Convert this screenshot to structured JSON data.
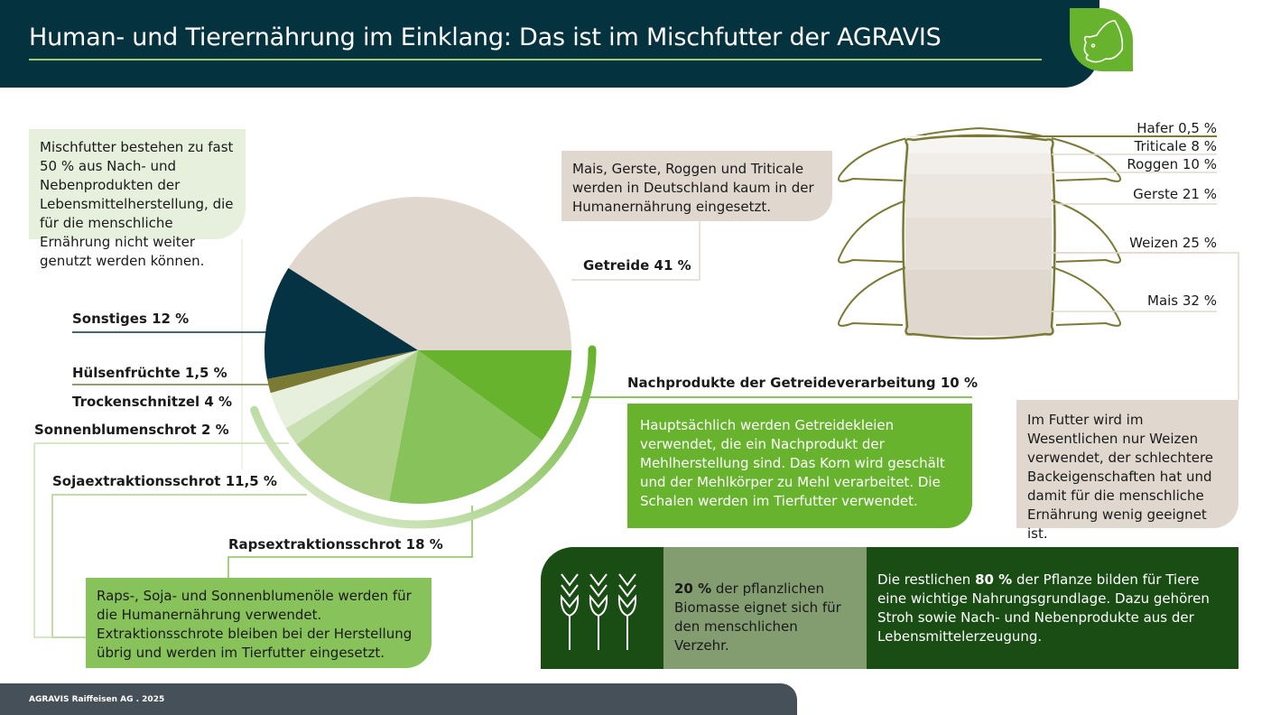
{
  "header": {
    "title": "Human- und Tierernährung im Einklang: Das ist im Mischfutter der AGRAVIS",
    "logo_icon": "pig-head-icon"
  },
  "intro_box": {
    "text": "Mischfutter bestehen zu fast 50 % aus Nach- und Nebenprodukten der Lebensmittelherstellung, die für die menschliche Ernährung nicht weiter genutzt werden können."
  },
  "cereal_box": {
    "text": "Mais, Gerste, Roggen und Triticale werden in Deutschland kaum in der Humanernährung eingesetzt."
  },
  "bran_box": {
    "text": "Hauptsächlich werden Getreidekleien verwendet, die ein Nachprodukt der Mehlherstellung sind. Das Korn wird geschält und der Mehlkörper zu Mehl verarbeitet. Die Schalen werden im Tierfutter verwendet."
  },
  "wheat_box": {
    "text": "Im Futter wird im Wesentlichen nur Weizen verwendet, der schlechtere Backeigenschaften hat und damit für die menschliche Ernährung wenig geeignet ist."
  },
  "oil_box": {
    "text": "Raps-, Soja- und Sonnenblumenöle werden für die Humanernährung verwendet. Extraktionsschrote bleiben bei der Herstellung übrig und werden im Tierfutter eingesetzt."
  },
  "biomass": {
    "icon": "wheat-ears-icon",
    "bold20": "20 %",
    "text20": " der pflanzlichen Biomasse eignet sich für den menschlichen Verzehr.",
    "pre80": "Die restlichen ",
    "bold80": "80 %",
    "text80": " der Pflanze bilden für Tiere eine wichtige Nahrungsgrundlage. Dazu gehören Stroh sowie Nach- und Nebenprodukte aus der Lebensmittelerzeugung."
  },
  "footer": {
    "text": "AGRAVIS Raiffeisen AG  .  2025"
  },
  "chart_data": [
    {
      "type": "pie",
      "start": "3 o'clock, counterclockwise",
      "labels": [
        "Getreide 41 %",
        "Sonstiges 12 %",
        "Hülsenfrüchte 1,5 %",
        "Trockenschnitzel 4 %",
        "Sonnenblumenschrot 2 %",
        "Sojaextraktionsschrot 11,5 %",
        "Rapsextraktionsschrot 18 %",
        "Nachprodukte der Getreideverarbeitung 10 %"
      ],
      "categories": [
        "Getreide",
        "Sonstiges",
        "Hülsenfrüchte",
        "Trockenschnitzel",
        "Sonnenblumenschrot",
        "Sojaextraktionsschrot",
        "Rapsextraktionsschrot",
        "Nachprodukte der Getreideverarbeitung"
      ],
      "values": [
        41,
        12,
        1.5,
        4,
        2,
        11.5,
        18,
        10
      ],
      "colors": [
        "#e0d8ce",
        "#053343",
        "#7a7a35",
        "#e7f0dc",
        "#c9e0b3",
        "#b0d18a",
        "#88c25a",
        "#67b32e"
      ]
    },
    {
      "type": "bar",
      "orientation": "stacked sack",
      "title": "",
      "labels": [
        "Hafer 0,5 %",
        "Triticale 8 %",
        "Roggen 10 %",
        "Gerste 21 %",
        "Weizen 25 %",
        "Mais 32 %"
      ],
      "categories": [
        "Hafer",
        "Triticale",
        "Roggen",
        "Gerste",
        "Weizen",
        "Mais"
      ],
      "values": [
        0.5,
        8,
        10,
        21,
        25,
        32
      ],
      "colors": [
        "#7a7a35",
        "#f7f5f2",
        "#f1ede8",
        "#ebe6e0",
        "#e5dfd8",
        "#e0d8ce"
      ]
    }
  ]
}
